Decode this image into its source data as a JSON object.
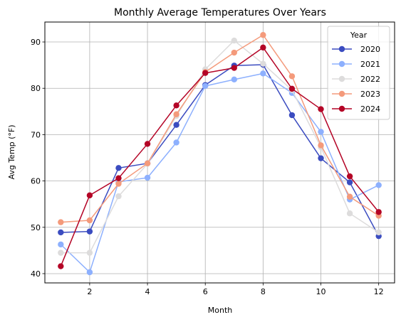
{
  "chart_data": {
    "type": "line",
    "title": "Monthly Average Temperatures Over Years",
    "xlabel": "Month",
    "ylabel": "Avg Temp (°F)",
    "x": [
      1,
      2,
      3,
      4,
      5,
      6,
      7,
      8,
      9,
      10,
      11,
      12
    ],
    "xlim": [
      0.45,
      12.55
    ],
    "ylim": [
      38,
      94.3
    ],
    "xticks": [
      2,
      4,
      6,
      8,
      10,
      12
    ],
    "yticks": [
      40,
      50,
      60,
      70,
      80,
      90
    ],
    "grid": true,
    "legend": {
      "title": "Year",
      "placement": "top-right"
    },
    "series": [
      {
        "name": "2020",
        "color": "#3b4cc0",
        "values": [
          48.9,
          49.1,
          62.8,
          63.8,
          72.1,
          80.7,
          84.9,
          85.1,
          74.2,
          64.9,
          59.7,
          48.1
        ]
      },
      {
        "name": "2021",
        "color": "#8db0fe",
        "values": [
          46.3,
          40.3,
          59.8,
          60.7,
          68.3,
          80.5,
          81.9,
          83.2,
          79.0,
          70.6,
          56.0,
          59.1
        ]
      },
      {
        "name": "2022",
        "color": "#dddcdc",
        "values": [
          44.5,
          44.5,
          56.7,
          63.7,
          74.0,
          84.1,
          90.3,
          85.3,
          79.6,
          67.3,
          53.0,
          48.9
        ]
      },
      {
        "name": "2023",
        "color": "#f49a7b",
        "values": [
          51.1,
          51.5,
          59.4,
          63.8,
          74.4,
          83.5,
          87.7,
          91.5,
          82.6,
          67.7,
          56.6,
          52.5
        ]
      },
      {
        "name": "2024",
        "color": "#b40426",
        "values": [
          41.6,
          56.9,
          60.6,
          68.0,
          76.3,
          83.3,
          84.4,
          88.8,
          79.9,
          75.5,
          61.0,
          53.3
        ]
      }
    ]
  }
}
